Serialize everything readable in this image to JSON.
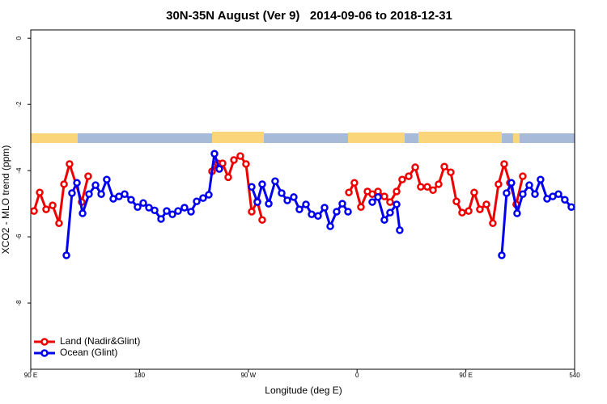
{
  "chart_data": {
    "type": "line",
    "title": "30N-35N August (Ver 9)   2014-09-06 to 2018-12-31",
    "x_label": "Longitude (deg E)",
    "y_label": "XCO2 - MLO trend (ppm)",
    "xlim": [
      90,
      540
    ],
    "ylim": [
      -10,
      0.25
    ],
    "xticks": [
      {
        "value": 90,
        "label": "90 E"
      },
      180,
      {
        "value": 270,
        "label": "90 W"
      },
      {
        "value": 360,
        "label": "0"
      },
      {
        "value": 450,
        "label": "90 E"
      },
      540
    ],
    "yticks": [
      0,
      -2,
      -4,
      -6,
      -8
    ],
    "legend": "bottom-left",
    "series": [
      {
        "name": "Land (Nadir&Glint)",
        "color": "#ee0000",
        "x": [
          92.7,
          97.4,
          102.7,
          108.1,
          113.4,
          117.5,
          122.1,
          132.2,
          137.5,
          null,
          240.0,
          244.7,
          248.7,
          253.4,
          258.1,
          263.4,
          268.1,
          272.8,
          277.5,
          281.5,
          null,
          353.2,
          357.8,
          363.2,
          368.6,
          372.6,
          377.3,
          382.6,
          387.3,
          392.7,
          397.3,
          402.7,
          408.1,
          412.7,
          418.1,
          422.8,
          427.5,
          432.2,
          437.5,
          442.2,
          446.9,
          452.3,
          456.9,
          461.6,
          467.0,
          472.3,
          477.0,
          481.7,
          486.4,
          491.7,
          497.1
        ],
        "values": [
          -5.22,
          -4.66,
          -5.17,
          -5.05,
          -5.59,
          -4.41,
          -3.8,
          -4.95,
          -4.17,
          null,
          -4.02,
          -3.78,
          -3.78,
          -4.2,
          -3.68,
          -3.56,
          -3.8,
          -5.24,
          -4.93,
          -5.49,
          null,
          -4.66,
          -4.37,
          -5.1,
          -4.63,
          -4.71,
          -4.63,
          -4.78,
          -4.95,
          -4.63,
          -4.27,
          -4.17,
          -3.9,
          -4.49,
          -4.49,
          -4.59,
          -4.41,
          -3.88,
          -4.05,
          -4.93,
          -5.27,
          -5.22,
          -4.66,
          -5.17,
          -5.02,
          -5.59,
          -4.41,
          -3.8,
          -4.37,
          -5.02,
          -4.17
        ]
      },
      {
        "name": "Ocean (Glint)",
        "color": "#0000ee",
        "x": [
          119.5,
          124.1,
          128.2,
          132.9,
          138.2,
          143.6,
          148.3,
          152.9,
          158.3,
          163.0,
          167.7,
          173.0,
          178.4,
          183.1,
          187.8,
          192.5,
          197.8,
          202.5,
          207.2,
          211.9,
          217.2,
          222.6,
          227.3,
          232.6,
          237.3,
          242.0,
          246.0,
          null,
          272.8,
          277.5,
          281.5,
          286.9,
          292.2,
          297.6,
          302.3,
          307.6,
          312.3,
          317.7,
          322.4,
          327.7,
          333.1,
          337.8,
          343.1,
          347.8,
          352.5,
          null,
          372.6,
          377.3,
          382.6,
          387.3,
          392.7,
          395.3,
          null,
          479.7,
          483.7,
          487.7,
          492.4,
          497.1,
          502.5,
          507.2,
          511.8,
          517.2,
          521.9,
          526.6,
          531.9,
          537.3
        ],
        "values": [
          -6.56,
          -4.68,
          -4.37,
          -5.29,
          -4.71,
          -4.44,
          -4.71,
          -4.27,
          -4.85,
          -4.78,
          -4.71,
          -4.88,
          -5.1,
          -4.98,
          -5.12,
          -5.2,
          -5.46,
          -5.22,
          -5.32,
          -5.22,
          -5.12,
          -5.24,
          -4.93,
          -4.83,
          -4.73,
          -3.49,
          -3.95,
          null,
          -4.49,
          -4.95,
          -4.41,
          -5.0,
          -4.32,
          -4.68,
          -4.9,
          -4.8,
          -5.17,
          -5.02,
          -5.32,
          -5.37,
          -5.12,
          -5.68,
          -5.24,
          -5.0,
          -5.24,
          null,
          -4.95,
          -4.8,
          -5.49,
          -5.27,
          -5.02,
          -5.8,
          null,
          -6.56,
          -4.68,
          -4.37,
          -5.29,
          -4.71,
          -4.44,
          -4.71,
          -4.27,
          -4.85,
          -4.78,
          -4.71,
          -4.88,
          -5.1
        ]
      }
    ]
  }
}
